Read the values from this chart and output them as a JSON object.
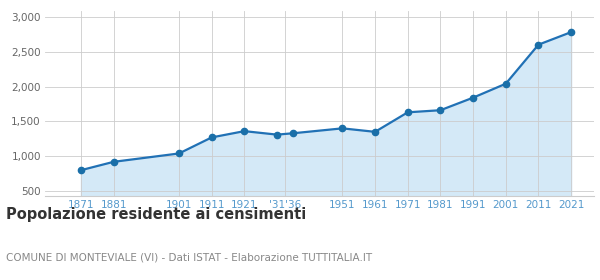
{
  "years": [
    1871,
    1881,
    1901,
    1911,
    1921,
    1931,
    1936,
    1951,
    1961,
    1971,
    1981,
    1991,
    2001,
    2011,
    2021
  ],
  "population": [
    800,
    920,
    1040,
    1270,
    1360,
    1310,
    1330,
    1400,
    1350,
    1630,
    1660,
    1840,
    2040,
    2600,
    2780
  ],
  "x_tick_labels": [
    "1871",
    "1881",
    "1901",
    "1911",
    "1921",
    "'31'36",
    "1951",
    "1961",
    "1971",
    "1981",
    "1991",
    "2001",
    "2011",
    "2021"
  ],
  "x_tick_positions": [
    1871,
    1881,
    1901,
    1911,
    1921,
    1933.5,
    1951,
    1961,
    1971,
    1981,
    1991,
    2001,
    2011,
    2021
  ],
  "line_color": "#2171b5",
  "fill_color": "#d4e9f7",
  "marker_color": "#1a6fa8",
  "grid_color": "#cccccc",
  "background_color": "#ffffff",
  "ylim": [
    430,
    3080
  ],
  "yticks": [
    500,
    1000,
    1500,
    2000,
    2500,
    3000
  ],
  "ytick_labels": [
    "500",
    "1,000",
    "1,500",
    "2,000",
    "2,500",
    "3,000"
  ],
  "xlim_left": 1860,
  "xlim_right": 2028,
  "title": "Popolazione residente ai censimenti",
  "subtitle": "COMUNE DI MONTEVIALE (VI) - Dati ISTAT - Elaborazione TUTTITALIA.IT",
  "title_fontsize": 10.5,
  "subtitle_fontsize": 7.5,
  "tick_fontsize": 7.5,
  "line_width": 1.6,
  "marker_size": 4.5
}
